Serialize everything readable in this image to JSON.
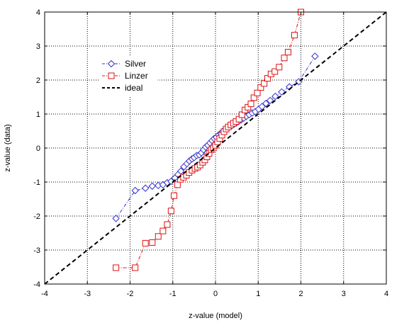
{
  "chart_data": {
    "type": "line",
    "title": "",
    "xlabel": "z-value (model)",
    "ylabel": "z-value (data)",
    "xlim": [
      -4,
      4
    ],
    "ylim": [
      -4,
      4
    ],
    "xticks": [
      -4,
      -3,
      -2,
      -1,
      0,
      1,
      2,
      3,
      4
    ],
    "yticks": [
      -4,
      -3,
      -2,
      -1,
      0,
      1,
      2,
      3,
      4
    ],
    "grid": true,
    "legend_position": "upper-left",
    "series": [
      {
        "name": "Silver",
        "color": "#3333cc",
        "marker": "diamond",
        "line_style": "dash-dot",
        "points": [
          [
            -2.33,
            -2.07
          ],
          [
            -1.88,
            -1.25
          ],
          [
            -1.64,
            -1.18
          ],
          [
            -1.48,
            -1.12
          ],
          [
            -1.34,
            -1.1
          ],
          [
            -1.23,
            -1.08
          ],
          [
            -1.13,
            -1.02
          ],
          [
            -1.04,
            -0.98
          ],
          [
            -0.95,
            -0.88
          ],
          [
            -0.88,
            -0.78
          ],
          [
            -0.81,
            -0.68
          ],
          [
            -0.74,
            -0.55
          ],
          [
            -0.67,
            -0.46
          ],
          [
            -0.61,
            -0.38
          ],
          [
            -0.55,
            -0.32
          ],
          [
            -0.5,
            -0.28
          ],
          [
            -0.44,
            -0.22
          ],
          [
            -0.38,
            -0.2
          ],
          [
            -0.33,
            -0.14
          ],
          [
            -0.28,
            -0.05
          ],
          [
            -0.23,
            0.03
          ],
          [
            -0.18,
            0.08
          ],
          [
            -0.13,
            0.15
          ],
          [
            -0.08,
            0.22
          ],
          [
            -0.03,
            0.28
          ],
          [
            0.02,
            0.32
          ],
          [
            0.07,
            0.38
          ],
          [
            0.12,
            0.43
          ],
          [
            0.17,
            0.49
          ],
          [
            0.22,
            0.53
          ],
          [
            0.27,
            0.58
          ],
          [
            0.32,
            0.62
          ],
          [
            0.38,
            0.66
          ],
          [
            0.43,
            0.7
          ],
          [
            0.48,
            0.73
          ],
          [
            0.54,
            0.78
          ],
          [
            0.6,
            0.83
          ],
          [
            0.66,
            0.88
          ],
          [
            0.72,
            0.93
          ],
          [
            0.79,
            0.98
          ],
          [
            0.86,
            1.03
          ],
          [
            0.93,
            1.07
          ],
          [
            1.01,
            1.14
          ],
          [
            1.09,
            1.22
          ],
          [
            1.18,
            1.31
          ],
          [
            1.28,
            1.4
          ],
          [
            1.4,
            1.52
          ],
          [
            1.55,
            1.65
          ],
          [
            1.73,
            1.8
          ],
          [
            1.95,
            1.95
          ],
          [
            2.33,
            2.7
          ]
        ]
      },
      {
        "name": "Linzer",
        "color": "#dd1111",
        "marker": "square",
        "line_style": "dash-dot",
        "points": [
          [
            -2.33,
            -3.52
          ],
          [
            -1.88,
            -3.52
          ],
          [
            -1.64,
            -2.8
          ],
          [
            -1.48,
            -2.78
          ],
          [
            -1.34,
            -2.6
          ],
          [
            -1.23,
            -2.44
          ],
          [
            -1.13,
            -2.25
          ],
          [
            -1.04,
            -1.85
          ],
          [
            -0.97,
            -1.4
          ],
          [
            -0.89,
            -1.08
          ],
          [
            -0.82,
            -0.92
          ],
          [
            -0.75,
            -0.86
          ],
          [
            -0.68,
            -0.8
          ],
          [
            -0.62,
            -0.72
          ],
          [
            -0.55,
            -0.65
          ],
          [
            -0.48,
            -0.6
          ],
          [
            -0.42,
            -0.56
          ],
          [
            -0.36,
            -0.5
          ],
          [
            -0.3,
            -0.42
          ],
          [
            -0.25,
            -0.35
          ],
          [
            -0.2,
            -0.26
          ],
          [
            -0.15,
            -0.16
          ],
          [
            -0.1,
            -0.05
          ],
          [
            -0.05,
            0.0
          ],
          [
            0.0,
            0.08
          ],
          [
            0.05,
            0.18
          ],
          [
            0.1,
            0.28
          ],
          [
            0.15,
            0.38
          ],
          [
            0.2,
            0.48
          ],
          [
            0.25,
            0.56
          ],
          [
            0.3,
            0.62
          ],
          [
            0.36,
            0.68
          ],
          [
            0.42,
            0.73
          ],
          [
            0.48,
            0.78
          ],
          [
            0.55,
            0.85
          ],
          [
            0.62,
            0.98
          ],
          [
            0.69,
            1.12
          ],
          [
            0.76,
            1.2
          ],
          [
            0.83,
            1.3
          ],
          [
            0.9,
            1.48
          ],
          [
            0.98,
            1.62
          ],
          [
            1.06,
            1.78
          ],
          [
            1.14,
            1.9
          ],
          [
            1.22,
            2.05
          ],
          [
            1.3,
            2.18
          ],
          [
            1.39,
            2.25
          ],
          [
            1.49,
            2.38
          ],
          [
            1.61,
            2.65
          ],
          [
            1.7,
            2.82
          ],
          [
            1.85,
            3.32
          ],
          [
            2.0,
            4.0
          ]
        ]
      },
      {
        "name": "ideal",
        "color": "#000000",
        "marker": "none",
        "line_style": "dashed",
        "points": [
          [
            -4,
            -4
          ],
          [
            4,
            4
          ]
        ]
      }
    ]
  }
}
